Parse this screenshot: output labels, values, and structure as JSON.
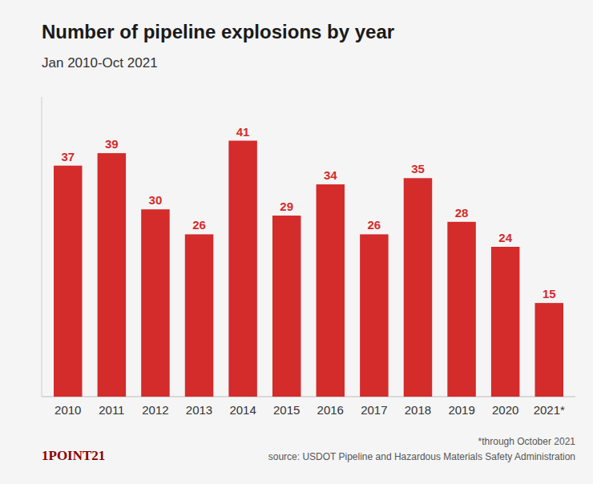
{
  "chart_data": {
    "type": "bar",
    "title": "Number of pipeline explosions by year",
    "subtitle": "Jan 2010-Oct 2021",
    "categories": [
      "2010",
      "2011",
      "2012",
      "2013",
      "2014",
      "2015",
      "2016",
      "2017",
      "2018",
      "2019",
      "2020",
      "2021*"
    ],
    "values": [
      37,
      39,
      30,
      26,
      41,
      29,
      34,
      26,
      35,
      28,
      24,
      15
    ],
    "color": "#D42B2B",
    "ylim": [
      0,
      48
    ],
    "grid": false,
    "data_labels": true,
    "tick_labels": "x",
    "annotations": [
      "*through October 2021",
      "source: USDOT Pipeline and Hazardous Materials Safety Administration",
      "1POINT21"
    ]
  }
}
